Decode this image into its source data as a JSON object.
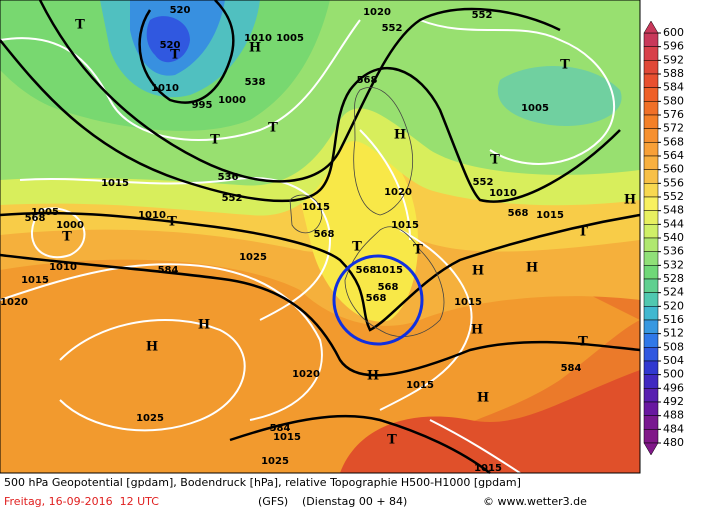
{
  "map": {
    "labels": [
      "520",
      "520",
      "552",
      "552",
      "1020",
      "1010",
      "1005",
      "538",
      "568",
      "1000",
      "995",
      "1010",
      "T",
      "T",
      "H",
      "T",
      "1005",
      "H",
      "T",
      "T",
      "T",
      "536",
      "552",
      "552",
      "1015",
      "1015",
      "1020",
      "1010",
      "568",
      "1015",
      "H",
      "T",
      "568",
      "1005",
      "1000",
      "T",
      "1010",
      "T",
      "568",
      "1015",
      "T",
      "T",
      "1025",
      "584",
      "1010",
      "1015",
      "1020",
      "568",
      "1015",
      "H",
      "H",
      "568",
      "568",
      "1015",
      "H",
      "H",
      "H",
      "T",
      "584",
      "1020",
      "H",
      "1015",
      "H",
      "1025",
      "584",
      "1015",
      "T",
      "1025",
      "1015"
    ]
  },
  "colorbar": {
    "ticks": [
      600,
      596,
      592,
      588,
      584,
      580,
      576,
      572,
      568,
      564,
      560,
      556,
      552,
      548,
      544,
      540,
      536,
      532,
      528,
      524,
      520,
      516,
      512,
      508,
      504,
      500,
      496,
      492,
      488,
      484,
      480
    ],
    "colors": [
      "#c8385a",
      "#d8404a",
      "#e04838",
      "#e85030",
      "#ee6028",
      "#f07028",
      "#f48028",
      "#f69030",
      "#f8a038",
      "#f8b040",
      "#f8c048",
      "#f8d850",
      "#f8f060",
      "#e8f060",
      "#d0f068",
      "#b0e870",
      "#90e078",
      "#70d878",
      "#60d090",
      "#50c8b0",
      "#40b8d0",
      "#3898e0",
      "#3078e8",
      "#3058e0",
      "#3038d0",
      "#4028c0",
      "#5820b0",
      "#6818a0",
      "#781890",
      "#801888"
    ]
  },
  "footer": {
    "description": "500 hPa Geopotential [gpdam], Bodendruck [hPa], relative Topographie H500-H1000 [gpdam]",
    "date": "Freitag, 16-09-2016  12 UTC",
    "model": "(GFS)",
    "run": "(Dienstag 00 + 84)",
    "credit": "© www.wetter3.de"
  }
}
